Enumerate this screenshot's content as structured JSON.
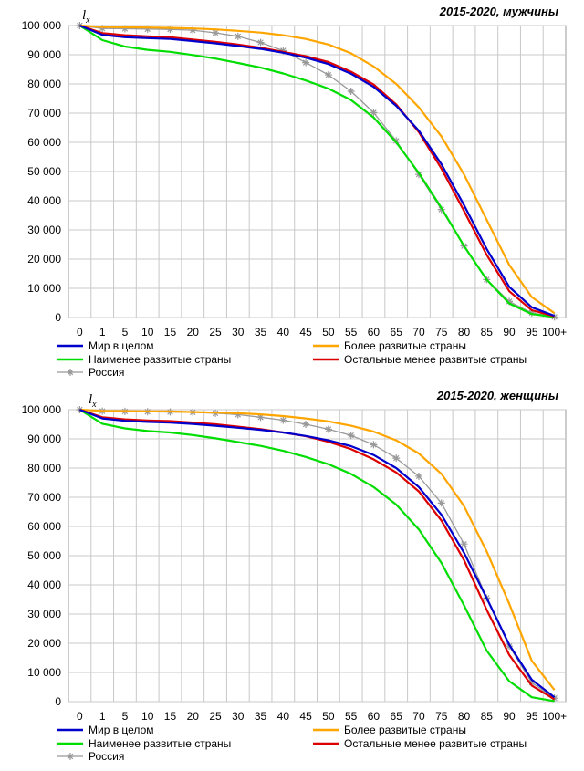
{
  "chart_data": [
    {
      "type": "line",
      "title": "2015-2020,  мужчины",
      "ylabel_main": "l",
      "ylabel_sub": "x",
      "categories": [
        "0",
        "1",
        "5",
        "10",
        "15",
        "20",
        "25",
        "30",
        "35",
        "40",
        "45",
        "50",
        "55",
        "60",
        "65",
        "70",
        "75",
        "80",
        "85",
        "90",
        "95",
        "100+"
      ],
      "y_ticks": [
        "0",
        "10 000",
        "20 000",
        "30 000",
        "40 000",
        "50 000",
        "60 000",
        "70 000",
        "80 000",
        "90 000",
        "100 000"
      ],
      "ylim": [
        0,
        100000
      ],
      "grid": true,
      "legend_position": "bottom",
      "series": [
        {
          "name": "Мир в целом",
          "color": "#0000cc",
          "marker": "none",
          "values": [
            100000,
            96800,
            96000,
            95700,
            95400,
            94700,
            93900,
            93000,
            92000,
            90700,
            89000,
            86800,
            83500,
            79000,
            72500,
            64000,
            52500,
            38500,
            23500,
            10500,
            3500,
            600
          ]
        },
        {
          "name": "Более развитые страны",
          "color": "#ffa500",
          "marker": "none",
          "values": [
            100000,
            99500,
            99400,
            99300,
            99200,
            99000,
            98700,
            98200,
            97600,
            96700,
            95400,
            93500,
            90500,
            86000,
            80000,
            72000,
            62000,
            49000,
            33500,
            18000,
            7000,
            1500
          ]
        },
        {
          "name": "Наименее развитые страны",
          "color": "#00dd00",
          "marker": "none",
          "values": [
            100000,
            95000,
            92800,
            91700,
            91000,
            89900,
            88700,
            87200,
            85600,
            83600,
            81200,
            78400,
            74500,
            68500,
            60000,
            49500,
            37500,
            24500,
            13000,
            4800,
            1200,
            200
          ]
        },
        {
          "name": "Остальные менее развитые страны",
          "color": "#dd0000",
          "marker": "none",
          "values": [
            100000,
            97400,
            96700,
            96300,
            96000,
            95200,
            94400,
            93500,
            92400,
            91000,
            89500,
            87500,
            84200,
            79800,
            73000,
            63500,
            51000,
            36500,
            21500,
            9000,
            2500,
            400
          ]
        },
        {
          "name": "Россия",
          "color": "#999999",
          "marker": "star",
          "values": [
            100000,
            99000,
            98900,
            98800,
            98700,
            98400,
            97500,
            96300,
            94200,
            91400,
            87300,
            83100,
            77500,
            70200,
            60500,
            49000,
            37000,
            24500,
            13000,
            5500,
            1600,
            200
          ]
        }
      ]
    },
    {
      "type": "line",
      "title": "2015-2020,  женщины",
      "ylabel_main": "l",
      "ylabel_sub": "x",
      "categories": [
        "0",
        "1",
        "5",
        "10",
        "15",
        "20",
        "25",
        "30",
        "35",
        "40",
        "45",
        "50",
        "55",
        "60",
        "65",
        "70",
        "75",
        "80",
        "85",
        "90",
        "95",
        "100+"
      ],
      "y_ticks": [
        "0",
        "10 000",
        "20 000",
        "30 000",
        "40 000",
        "50 000",
        "60 000",
        "70 000",
        "80 000",
        "90 000",
        "100 000"
      ],
      "ylim": [
        0,
        100000
      ],
      "grid": true,
      "legend_position": "bottom",
      "series": [
        {
          "name": "Мир в целом",
          "color": "#0000cc",
          "marker": "none",
          "values": [
            100000,
            97000,
            96200,
            95800,
            95600,
            95100,
            94500,
            93800,
            93100,
            92200,
            91000,
            89500,
            87500,
            84500,
            80000,
            73500,
            64000,
            51000,
            35500,
            19500,
            7500,
            1500
          ]
        },
        {
          "name": "Более развитые страны",
          "color": "#ffa500",
          "marker": "none",
          "values": [
            100000,
            99600,
            99500,
            99400,
            99400,
            99200,
            99000,
            98800,
            98400,
            97800,
            97000,
            96000,
            94500,
            92500,
            89500,
            85000,
            78000,
            67000,
            51500,
            33500,
            14000,
            4000
          ]
        },
        {
          "name": "Наименее развитые страны",
          "color": "#00dd00",
          "marker": "none",
          "values": [
            100000,
            95200,
            93600,
            92700,
            92200,
            91300,
            90200,
            88900,
            87600,
            85900,
            83800,
            81300,
            78000,
            73500,
            67500,
            59000,
            47500,
            33000,
            17500,
            7000,
            1500,
            200
          ]
        },
        {
          "name": "Остальные менее развитые страны",
          "color": "#dd0000",
          "marker": "none",
          "values": [
            100000,
            97400,
            96700,
            96300,
            96100,
            95600,
            95000,
            94200,
            93300,
            92200,
            90900,
            89000,
            86500,
            83000,
            78500,
            72000,
            62000,
            48500,
            31500,
            16000,
            5500,
            800
          ]
        },
        {
          "name": "Россия",
          "color": "#999999",
          "marker": "star",
          "values": [
            100000,
            99500,
            99400,
            99300,
            99200,
            99100,
            98800,
            98300,
            97400,
            96400,
            95000,
            93300,
            91200,
            88000,
            83400,
            77200,
            68000,
            54000,
            35500,
            19000,
            6500,
            1200
          ]
        }
      ]
    }
  ]
}
